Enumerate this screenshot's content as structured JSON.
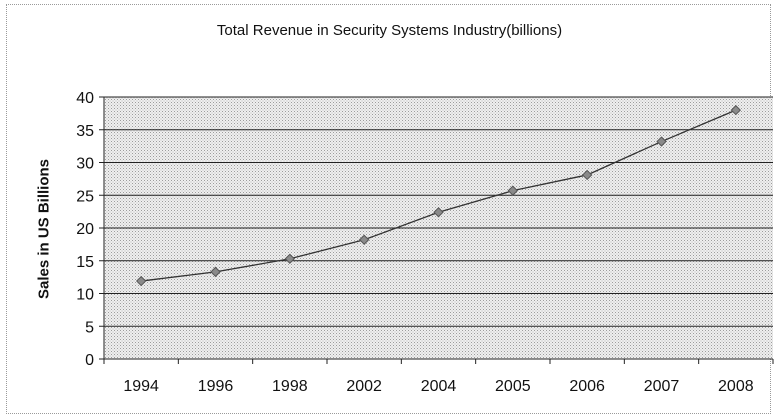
{
  "chart_data": {
    "type": "line",
    "title": "Total Revenue in Security Systems Industry(billions)",
    "xlabel": "",
    "ylabel": "Sales in US Billions",
    "categories": [
      "1994",
      "1996",
      "1998",
      "2002",
      "2004",
      "2005",
      "2006",
      "2007",
      "2008"
    ],
    "series": [
      {
        "values": [
          11.9,
          13.3,
          15.3,
          18.2,
          22.4,
          25.7,
          28.1,
          33.2,
          38.0
        ]
      }
    ],
    "ylim": [
      0,
      40
    ],
    "yticks": [
      "0",
      "5",
      "10",
      "15",
      "20",
      "25",
      "30",
      "35",
      "40"
    ],
    "grid": "horizontal",
    "legend": "none",
    "colors": {
      "line": "#333333",
      "marker": "#8a8a8a",
      "plot_bg": "#d9d9d9",
      "grid": "#222222"
    }
  }
}
